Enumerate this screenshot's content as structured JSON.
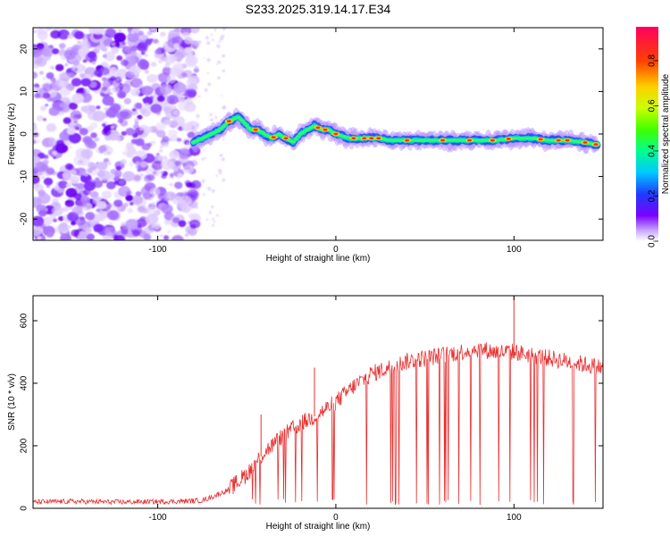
{
  "title": "S233.2025.319.14.17.E34",
  "chart_data": [
    {
      "type": "heatmap",
      "xlabel": "Height of straight line (km)",
      "ylabel": "Frequency (Hz)",
      "xlim": [
        -170,
        150
      ],
      "ylim": [
        -25,
        25
      ],
      "x_ticks": [
        -100,
        0,
        100
      ],
      "y_ticks": [
        -20,
        -10,
        0,
        10,
        20
      ],
      "grid": false,
      "colorbar": {
        "label": "Normalized spectral amplitude",
        "range": [
          0,
          0.95
        ],
        "ticks": [
          0.0,
          0.2,
          0.4,
          0.6,
          0.8
        ]
      },
      "noise_region_x": [
        -170,
        -78
      ],
      "signal_ridge": {
        "x": [
          -80,
          -75,
          -70,
          -65,
          -60,
          -55,
          -52,
          -48,
          -44,
          -40,
          -36,
          -32,
          -28,
          -24,
          -20,
          -16,
          -12,
          -8,
          -4,
          0,
          4,
          8,
          12,
          16,
          20,
          24,
          30,
          40,
          50,
          60,
          70,
          80,
          90,
          100,
          110,
          120,
          130,
          140,
          147
        ],
        "freq": [
          -2,
          -1,
          0,
          1,
          3,
          4,
          3,
          1,
          1,
          0,
          -1,
          0,
          -1,
          -2,
          0,
          1,
          2,
          1,
          1,
          0,
          -0.5,
          -1,
          -1,
          -1,
          -1,
          -1,
          -1.5,
          -1.5,
          -1.5,
          -1.5,
          -1.5,
          -1.5,
          -1.5,
          -1,
          -1,
          -1.5,
          -1.5,
          -2,
          -2.5
        ]
      }
    },
    {
      "type": "line",
      "xlabel": "Height of straight line (km)",
      "ylabel": "SNR (10 * v/v)",
      "xlim": [
        -170,
        150
      ],
      "ylim": [
        0,
        680
      ],
      "x_ticks": [
        -100,
        0,
        100
      ],
      "y_ticks": [
        0,
        200,
        400,
        600
      ],
      "grid": false,
      "color": "#e83030",
      "trend": {
        "x": [
          -170,
          -150,
          -120,
          -90,
          -75,
          -70,
          -60,
          -50,
          -40,
          -30,
          -20,
          -10,
          0,
          10,
          20,
          30,
          40,
          50,
          60,
          70,
          80,
          90,
          100,
          110,
          120,
          130,
          140,
          150
        ],
        "y": [
          20,
          22,
          20,
          22,
          25,
          35,
          60,
          110,
          180,
          230,
          270,
          300,
          340,
          390,
          430,
          450,
          470,
          480,
          490,
          500,
          510,
          500,
          500,
          490,
          480,
          470,
          460,
          450
        ]
      },
      "spikes": [
        {
          "x": -42,
          "y": 300
        },
        {
          "x": -12,
          "y": 450
        },
        {
          "x": 100,
          "y": 680
        }
      ]
    }
  ]
}
